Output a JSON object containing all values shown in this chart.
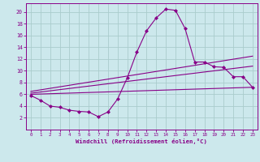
{
  "xlabel": "Windchill (Refroidissement éolien,°C)",
  "bg_color": "#cce8ec",
  "grid_color": "#aacccc",
  "line_color": "#880088",
  "xlim": [
    -0.5,
    23.5
  ],
  "ylim": [
    0,
    21.5
  ],
  "yticks": [
    2,
    4,
    6,
    8,
    10,
    12,
    14,
    16,
    18,
    20
  ],
  "xticks": [
    0,
    1,
    2,
    3,
    4,
    5,
    6,
    7,
    8,
    9,
    10,
    11,
    12,
    13,
    14,
    15,
    16,
    17,
    18,
    19,
    20,
    21,
    22,
    23
  ],
  "curve1_x": [
    0,
    1,
    2,
    3,
    4,
    5,
    6,
    7,
    8,
    9,
    10,
    11,
    12,
    13,
    14,
    15,
    16,
    17,
    18,
    19,
    20,
    21,
    22,
    23
  ],
  "curve1_y": [
    5.8,
    5.0,
    4.0,
    3.8,
    3.3,
    3.1,
    3.0,
    2.2,
    3.0,
    5.2,
    8.8,
    13.2,
    16.8,
    19.0,
    20.5,
    20.3,
    17.2,
    11.5,
    11.5,
    10.7,
    10.6,
    9.0,
    9.0,
    7.2
  ],
  "line2_x": [
    0,
    23
  ],
  "line2_y": [
    6.0,
    7.2
  ],
  "line3_x": [
    0,
    23
  ],
  "line3_y": [
    6.2,
    10.8
  ],
  "line4_x": [
    0,
    23
  ],
  "line4_y": [
    6.5,
    12.5
  ]
}
